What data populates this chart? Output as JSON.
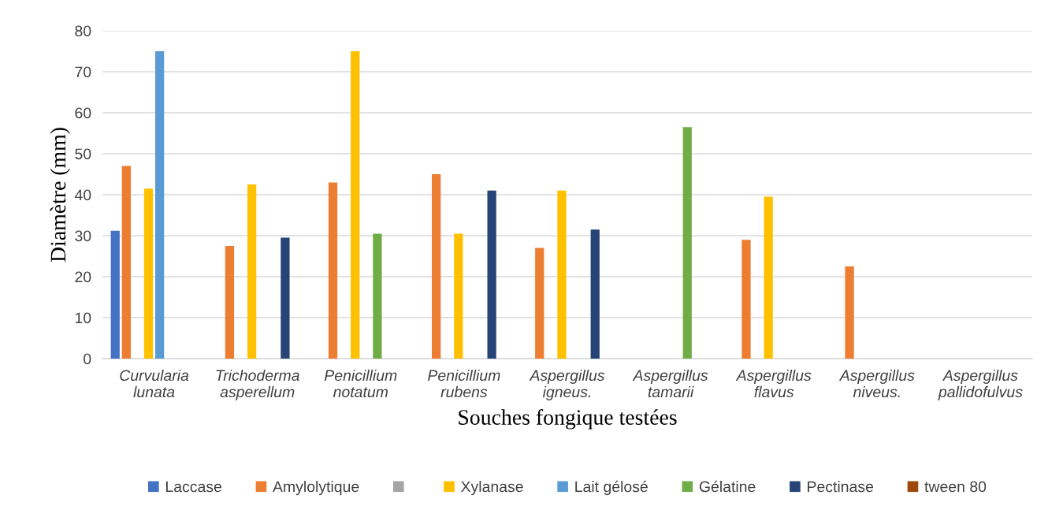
{
  "chart_data": {
    "type": "bar",
    "xlabel": "Souches fongique testées",
    "ylabel": "Diamètre (mm)",
    "categories": [
      "Curvularia\nlunata",
      "Trichoderma\nasperellum",
      "Penicillium\nnotatum",
      "Penicillium\nrubens",
      "Aspergillus\nigneus.",
      "Aspergillus\ntamarii",
      "Aspergillus\nflavus",
      "Aspergillus\nniveus.",
      "Aspergillus\npallidofulvus"
    ],
    "series": [
      {
        "name": "Laccase",
        "color": "#4472c4",
        "values": [
          31.2,
          null,
          null,
          null,
          null,
          null,
          null,
          null,
          null
        ]
      },
      {
        "name": "Amylolytique",
        "color": "#ed7d31",
        "values": [
          47,
          27.5,
          43,
          45,
          27,
          null,
          29,
          22.5,
          null
        ]
      },
      {
        "color": "#a5a5a5",
        "values": [
          null,
          null,
          null,
          null,
          null,
          null,
          null,
          null,
          null
        ]
      },
      {
        "name": "Xylanase",
        "color": "#ffc000",
        "values": [
          41.5,
          42.5,
          75,
          30.5,
          41,
          null,
          39.5,
          null,
          null
        ]
      },
      {
        "name": "Lait gélosé",
        "color": "#5b9bd5",
        "values": [
          75,
          null,
          null,
          null,
          null,
          null,
          null,
          null,
          null
        ]
      },
      {
        "name": "Gélatine",
        "color": "#70ad47",
        "values": [
          null,
          null,
          30.5,
          null,
          null,
          56.5,
          null,
          null,
          null
        ]
      },
      {
        "name": "Pectinase",
        "color": "#264478",
        "values": [
          null,
          29.5,
          null,
          41,
          31.5,
          null,
          null,
          null,
          null
        ]
      },
      {
        "name": "tween 80",
        "color": "#9e480e",
        "values": [
          null,
          null,
          null,
          null,
          null,
          null,
          null,
          null,
          null
        ]
      }
    ],
    "ylim": [
      0,
      80
    ],
    "yticks": [
      0,
      10,
      20,
      30,
      40,
      50,
      60,
      70,
      80
    ],
    "grid": "y",
    "legend": "bottom"
  }
}
